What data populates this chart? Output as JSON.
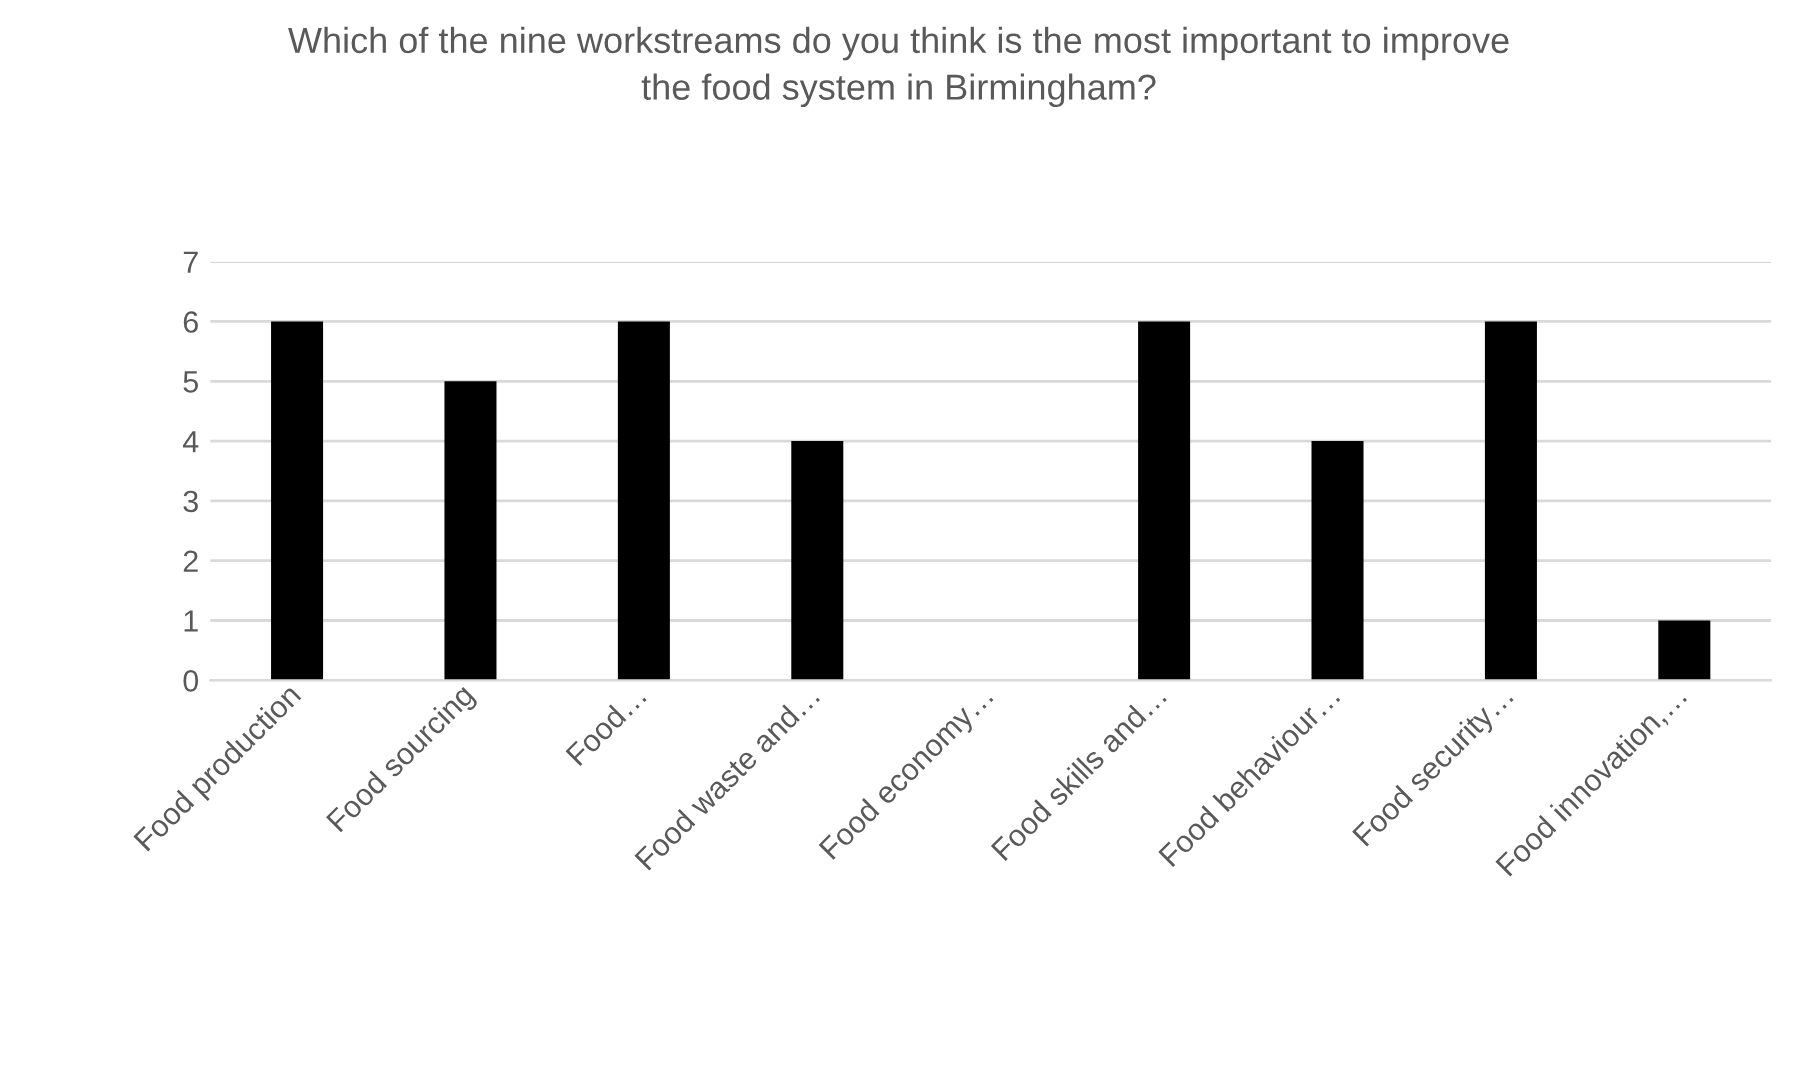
{
  "chart_data": {
    "type": "bar",
    "title": "Which of the nine workstreams do you think is the most important to improve the food system in Birmingham?",
    "categories": [
      "Food production",
      "Food sourcing",
      "Food…",
      "Food waste and…",
      "Food economy…",
      "Food skills and…",
      "Food behaviour…",
      "Food security…",
      "Food innovation,…"
    ],
    "values": [
      6,
      5,
      6,
      4,
      0,
      6,
      4,
      6,
      1
    ],
    "color": "#000000",
    "ylim": [
      0,
      7
    ],
    "yticks": [
      0,
      1,
      2,
      3,
      4,
      5,
      6,
      7
    ],
    "grid": "y"
  }
}
